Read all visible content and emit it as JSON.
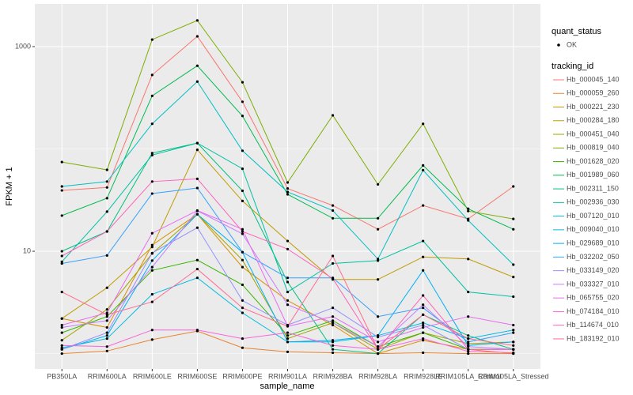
{
  "chart_data": {
    "type": "line",
    "x_label": "sample_name",
    "y_label": "FPKM + 1",
    "categories": [
      "PB350LA",
      "RRIM600LA",
      "RRIM600LE",
      "RRIM600SE",
      "RRIM600PE",
      "RRIM901LA",
      "RRIM928BA",
      "RRIM928LA",
      "RRIM928LE",
      "RRIM105LA_Control",
      "RRIM105LA_Stressed"
    ],
    "log_y": true,
    "grid": true,
    "ylim": [
      0.708,
      2610
    ],
    "yticks": [
      10,
      1000
    ],
    "point_color": "#000000",
    "quant_status": {
      "title": "quant_status",
      "items": [
        "OK"
      ]
    },
    "legend_title": "tracking_id",
    "series": [
      {
        "name": "Hb_000045_140",
        "color": "#F8766D",
        "values": [
          39.3,
          42,
          528,
          1260,
          289,
          41,
          28,
          16.4,
          28,
          20.7,
          43
        ]
      },
      {
        "name": "Hb_000059_260",
        "color": "#EA8331",
        "values": [
          1.0,
          1.06,
          1.37,
          1.66,
          1.14,
          1.04,
          1.02,
          1.0,
          1.02,
          1.0,
          1.0
        ]
      },
      {
        "name": "Hb_000221_230",
        "color": "#D89000",
        "values": [
          2.2,
          1.8,
          11.5,
          23,
          7,
          3.3,
          1.9,
          1,
          1.35,
          1.1,
          1
        ]
      },
      {
        "name": "Hb_000284_180",
        "color": "#C09B00",
        "values": [
          2.2,
          4.4,
          11,
          98,
          31,
          12.6,
          5.3,
          5.3,
          8.8,
          8.4,
          5.6
        ]
      },
      {
        "name": "Hb_000451_040",
        "color": "#A3A500",
        "values": [
          1.35,
          2.7,
          9.5,
          23,
          8.2,
          1.4,
          2,
          1.1,
          1.6,
          1.25,
          1.3
        ]
      },
      {
        "name": "Hb_000819_040",
        "color": "#7CAE00",
        "values": [
          74.5,
          62.4,
          1170,
          1800,
          448,
          47,
          213,
          45,
          176,
          24.7,
          20.7
        ]
      },
      {
        "name": "Hb_001628_020",
        "color": "#39B600",
        "values": [
          1.6,
          2.3,
          6.5,
          8.2,
          4.7,
          1.5,
          2.1,
          1.17,
          1.6,
          1.1,
          1.1
        ]
      },
      {
        "name": "Hb_001989_060",
        "color": "#00BB4E",
        "values": [
          22.3,
          33,
          330,
          650,
          210,
          36,
          21,
          21,
          69,
          26,
          16.4
        ]
      },
      {
        "name": "Hb_002311_150",
        "color": "#00BF7D",
        "values": [
          10,
          15.6,
          91,
          114,
          39,
          5,
          1.1,
          1,
          2.4,
          1.5,
          1.1
        ]
      },
      {
        "name": "Hb_002936_030",
        "color": "#00C1A3",
        "values": [
          7.9,
          24.4,
          87,
          114,
          64,
          4.0,
          7.6,
          8.1,
          12.6,
          4.0,
          3.6
        ]
      },
      {
        "name": "Hb_007120_010",
        "color": "#00BFC4",
        "values": [
          43,
          48,
          176,
          455,
          96,
          38,
          25,
          8.4,
          62,
          20,
          7.4
        ]
      },
      {
        "name": "Hb_009040_010",
        "color": "#00BAE0",
        "values": [
          1.14,
          1.4,
          3.8,
          5.5,
          2.5,
          1.3,
          1.3,
          1.5,
          2.0,
          1.4,
          1.7
        ]
      },
      {
        "name": "Hb_029689_010",
        "color": "#00B0F6",
        "values": [
          1.1,
          1.5,
          8.1,
          23,
          9.8,
          1.3,
          1.35,
          1.5,
          6.5,
          1.2,
          1.3
        ]
      },
      {
        "name": "Hb_032202_050",
        "color": "#35A2FF",
        "values": [
          7.6,
          9.1,
          36.6,
          41.5,
          9.8,
          5.5,
          5.5,
          2.3,
          2.8,
          1.3,
          1.6
        ]
      },
      {
        "name": "Hb_033149_020",
        "color": "#9590FF",
        "values": [
          1.1,
          1.6,
          9.6,
          17,
          3.3,
          1.9,
          2.8,
          1.45,
          1.9,
          1.1,
          1.1
        ]
      },
      {
        "name": "Hb_033327_010",
        "color": "#C77CFF",
        "values": [
          1.8,
          2.1,
          7,
          24.8,
          14.8,
          3.0,
          2.0,
          1.17,
          3.0,
          1.17,
          1.1
        ]
      },
      {
        "name": "Hb_065755_020",
        "color": "#E76BF3",
        "values": [
          1.9,
          2.5,
          15,
          25,
          16.4,
          1.85,
          2.3,
          1.3,
          1.8,
          2.3,
          1.9
        ]
      },
      {
        "name": "Hb_074184_010",
        "color": "#FA62DB",
        "values": [
          1.2,
          1.17,
          1.7,
          1.7,
          1.4,
          1.6,
          1.2,
          1.1,
          1.4,
          1.05,
          1.02
        ]
      },
      {
        "name": "Hb_114674_010",
        "color": "#FF62BC",
        "values": [
          9.0,
          15.6,
          48,
          51,
          15.6,
          10.5,
          5.4,
          1.1,
          3.7,
          1.1,
          1.1
        ]
      },
      {
        "name": "Hb_183192_010",
        "color": "#FF6C91",
        "values": [
          4.0,
          2.4,
          3.2,
          6.7,
          2.8,
          1.85,
          9.0,
          1.1,
          2.4,
          1.4,
          1.2
        ]
      }
    ]
  }
}
